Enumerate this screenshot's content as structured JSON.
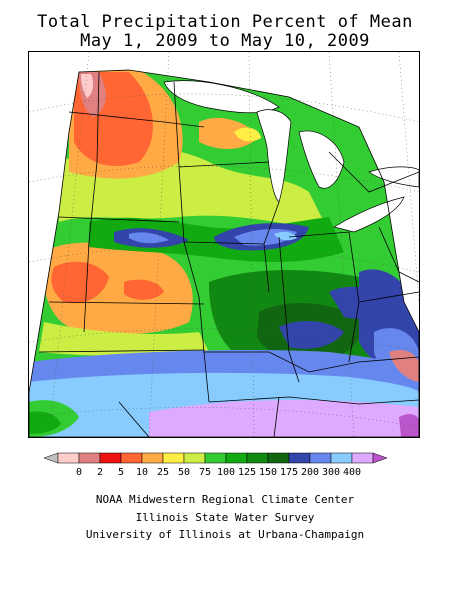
{
  "title": {
    "line1": "Total Precipitation Percent of Mean",
    "line2": "May 1, 2009 to May 10, 2009"
  },
  "legend": {
    "bins": [
      {
        "color": "#c0c0c0"
      },
      {
        "color": "#ffcccc"
      },
      {
        "color": "#e08080"
      },
      {
        "color": "#ee1111"
      },
      {
        "color": "#ff6633"
      },
      {
        "color": "#ffaa44"
      },
      {
        "color": "#ffee44"
      },
      {
        "color": "#ccee44"
      },
      {
        "color": "#33cc33"
      },
      {
        "color": "#11aa11"
      },
      {
        "color": "#118811"
      },
      {
        "color": "#116611"
      },
      {
        "color": "#3344aa"
      },
      {
        "color": "#6688ee"
      },
      {
        "color": "#88ccff"
      },
      {
        "color": "#ddaaff"
      },
      {
        "color": "#bb55cc"
      }
    ],
    "labels": [
      "0",
      "2",
      "5",
      "10",
      "25",
      "50",
      "75",
      "100",
      "125",
      "150",
      "175",
      "200",
      "300",
      "400"
    ]
  },
  "credits": {
    "line1": "NOAA Midwestern Regional Climate Center",
    "line2": "Illinois State Water Survey",
    "line3": "University of Illinois at Urbana-Champaign"
  },
  "colors": {
    "dry_severe": "#ee1111",
    "dry": "#ff6633",
    "normal": "#33cc33",
    "wet": "#3344aa",
    "very_wet": "#88ccff",
    "extreme_wet": "#ddaaff"
  }
}
